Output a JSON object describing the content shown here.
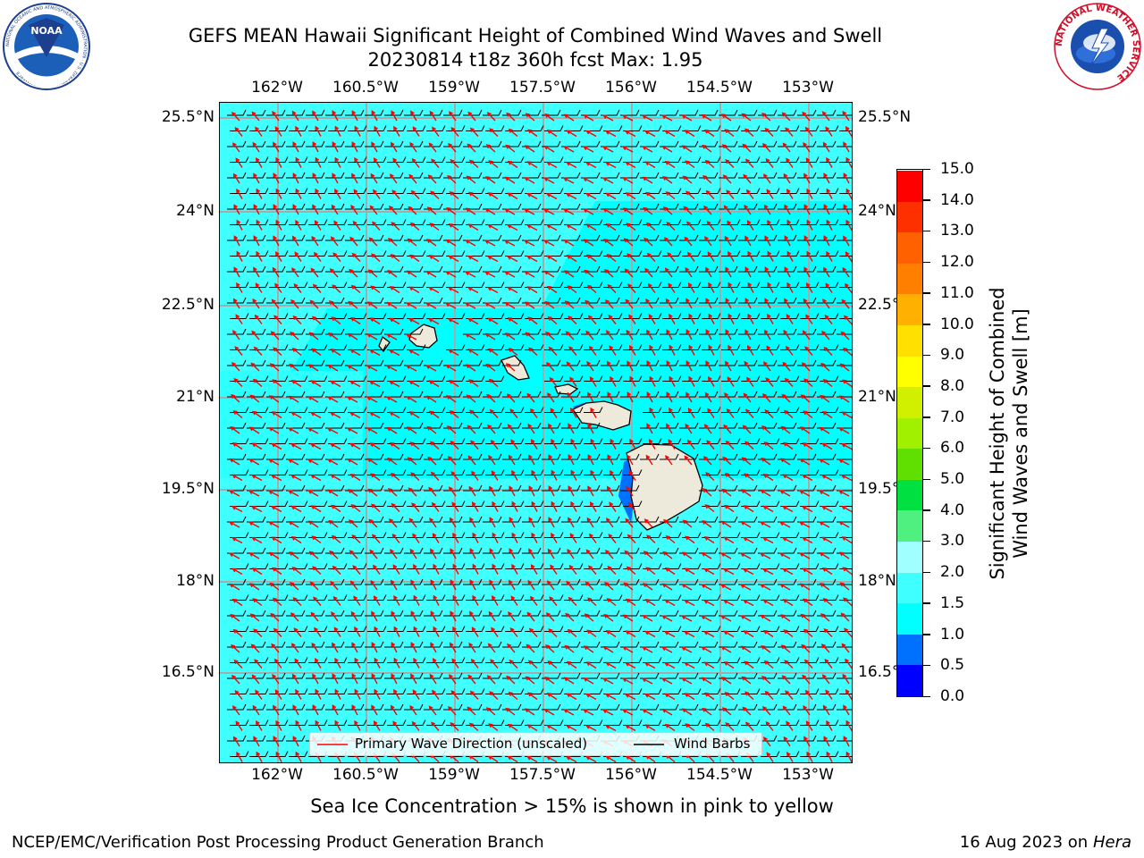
{
  "title": {
    "line1": "GEFS MEAN Hawaii Significant Height of Combined Wind Waves and Swell",
    "line2": "20230814 t18z 360h fcst   Max: 1.95"
  },
  "axes": {
    "lon_labels": [
      "162°W",
      "160.5°W",
      "159°W",
      "157.5°W",
      "156°W",
      "154.5°W",
      "153°W"
    ],
    "lat_labels": [
      "25.5°N",
      "24°N",
      "22.5°N",
      "21°N",
      "19.5°N",
      "18°N",
      "16.5°N"
    ],
    "lon_values": [
      -162,
      -160.5,
      -159,
      -157.5,
      -156,
      -154.5,
      -153
    ],
    "lat_values": [
      25.5,
      24,
      22.5,
      21,
      19.5,
      18,
      16.5
    ]
  },
  "colorbar": {
    "title_line1": "Significant Height of Combined",
    "title_line2": "Wind Waves and Swell [m]",
    "ticks": [
      "0.0",
      "0.5",
      "1.0",
      "1.5",
      "2.0",
      "3.0",
      "4.0",
      "5.0",
      "6.0",
      "7.0",
      "8.0",
      "9.0",
      "10.0",
      "11.0",
      "12.0",
      "13.0",
      "14.0",
      "15.0"
    ],
    "colors": [
      "#0000ff",
      "#0070ff",
      "#00ffff",
      "#40ffff",
      "#a0ffff",
      "#50f080",
      "#00e040",
      "#60e000",
      "#a0f000",
      "#d0f000",
      "#ffff00",
      "#ffe000",
      "#ffb000",
      "#ff8000",
      "#ff6000",
      "#ff3000",
      "#ff0000"
    ]
  },
  "legend": {
    "wave_label": "Primary Wave Direction (unscaled)",
    "barb_label": "Wind Barbs",
    "wave_color": "#ff0000",
    "barb_color": "#000000"
  },
  "note": "Sea Ice Concentration > 15% is shown in pink to yellow",
  "footer": {
    "credit": "NCEP/EMC/Verification Post Processing Product Generation Branch",
    "date": "16 Aug 2023 on",
    "machine": "Hera"
  },
  "logos": {
    "left": "NOAA",
    "left_ring": "NATIONAL OCEANIC AND ATMOSPHERIC ADMINISTRATION · U.S. DEPARTMENT OF COMMERCE",
    "right_ring": "NATIONAL WEATHER SERVICE"
  },
  "map": {
    "ocean_color": "#00ffff",
    "land_color": "#eeeadb",
    "max_value": 1.95
  }
}
